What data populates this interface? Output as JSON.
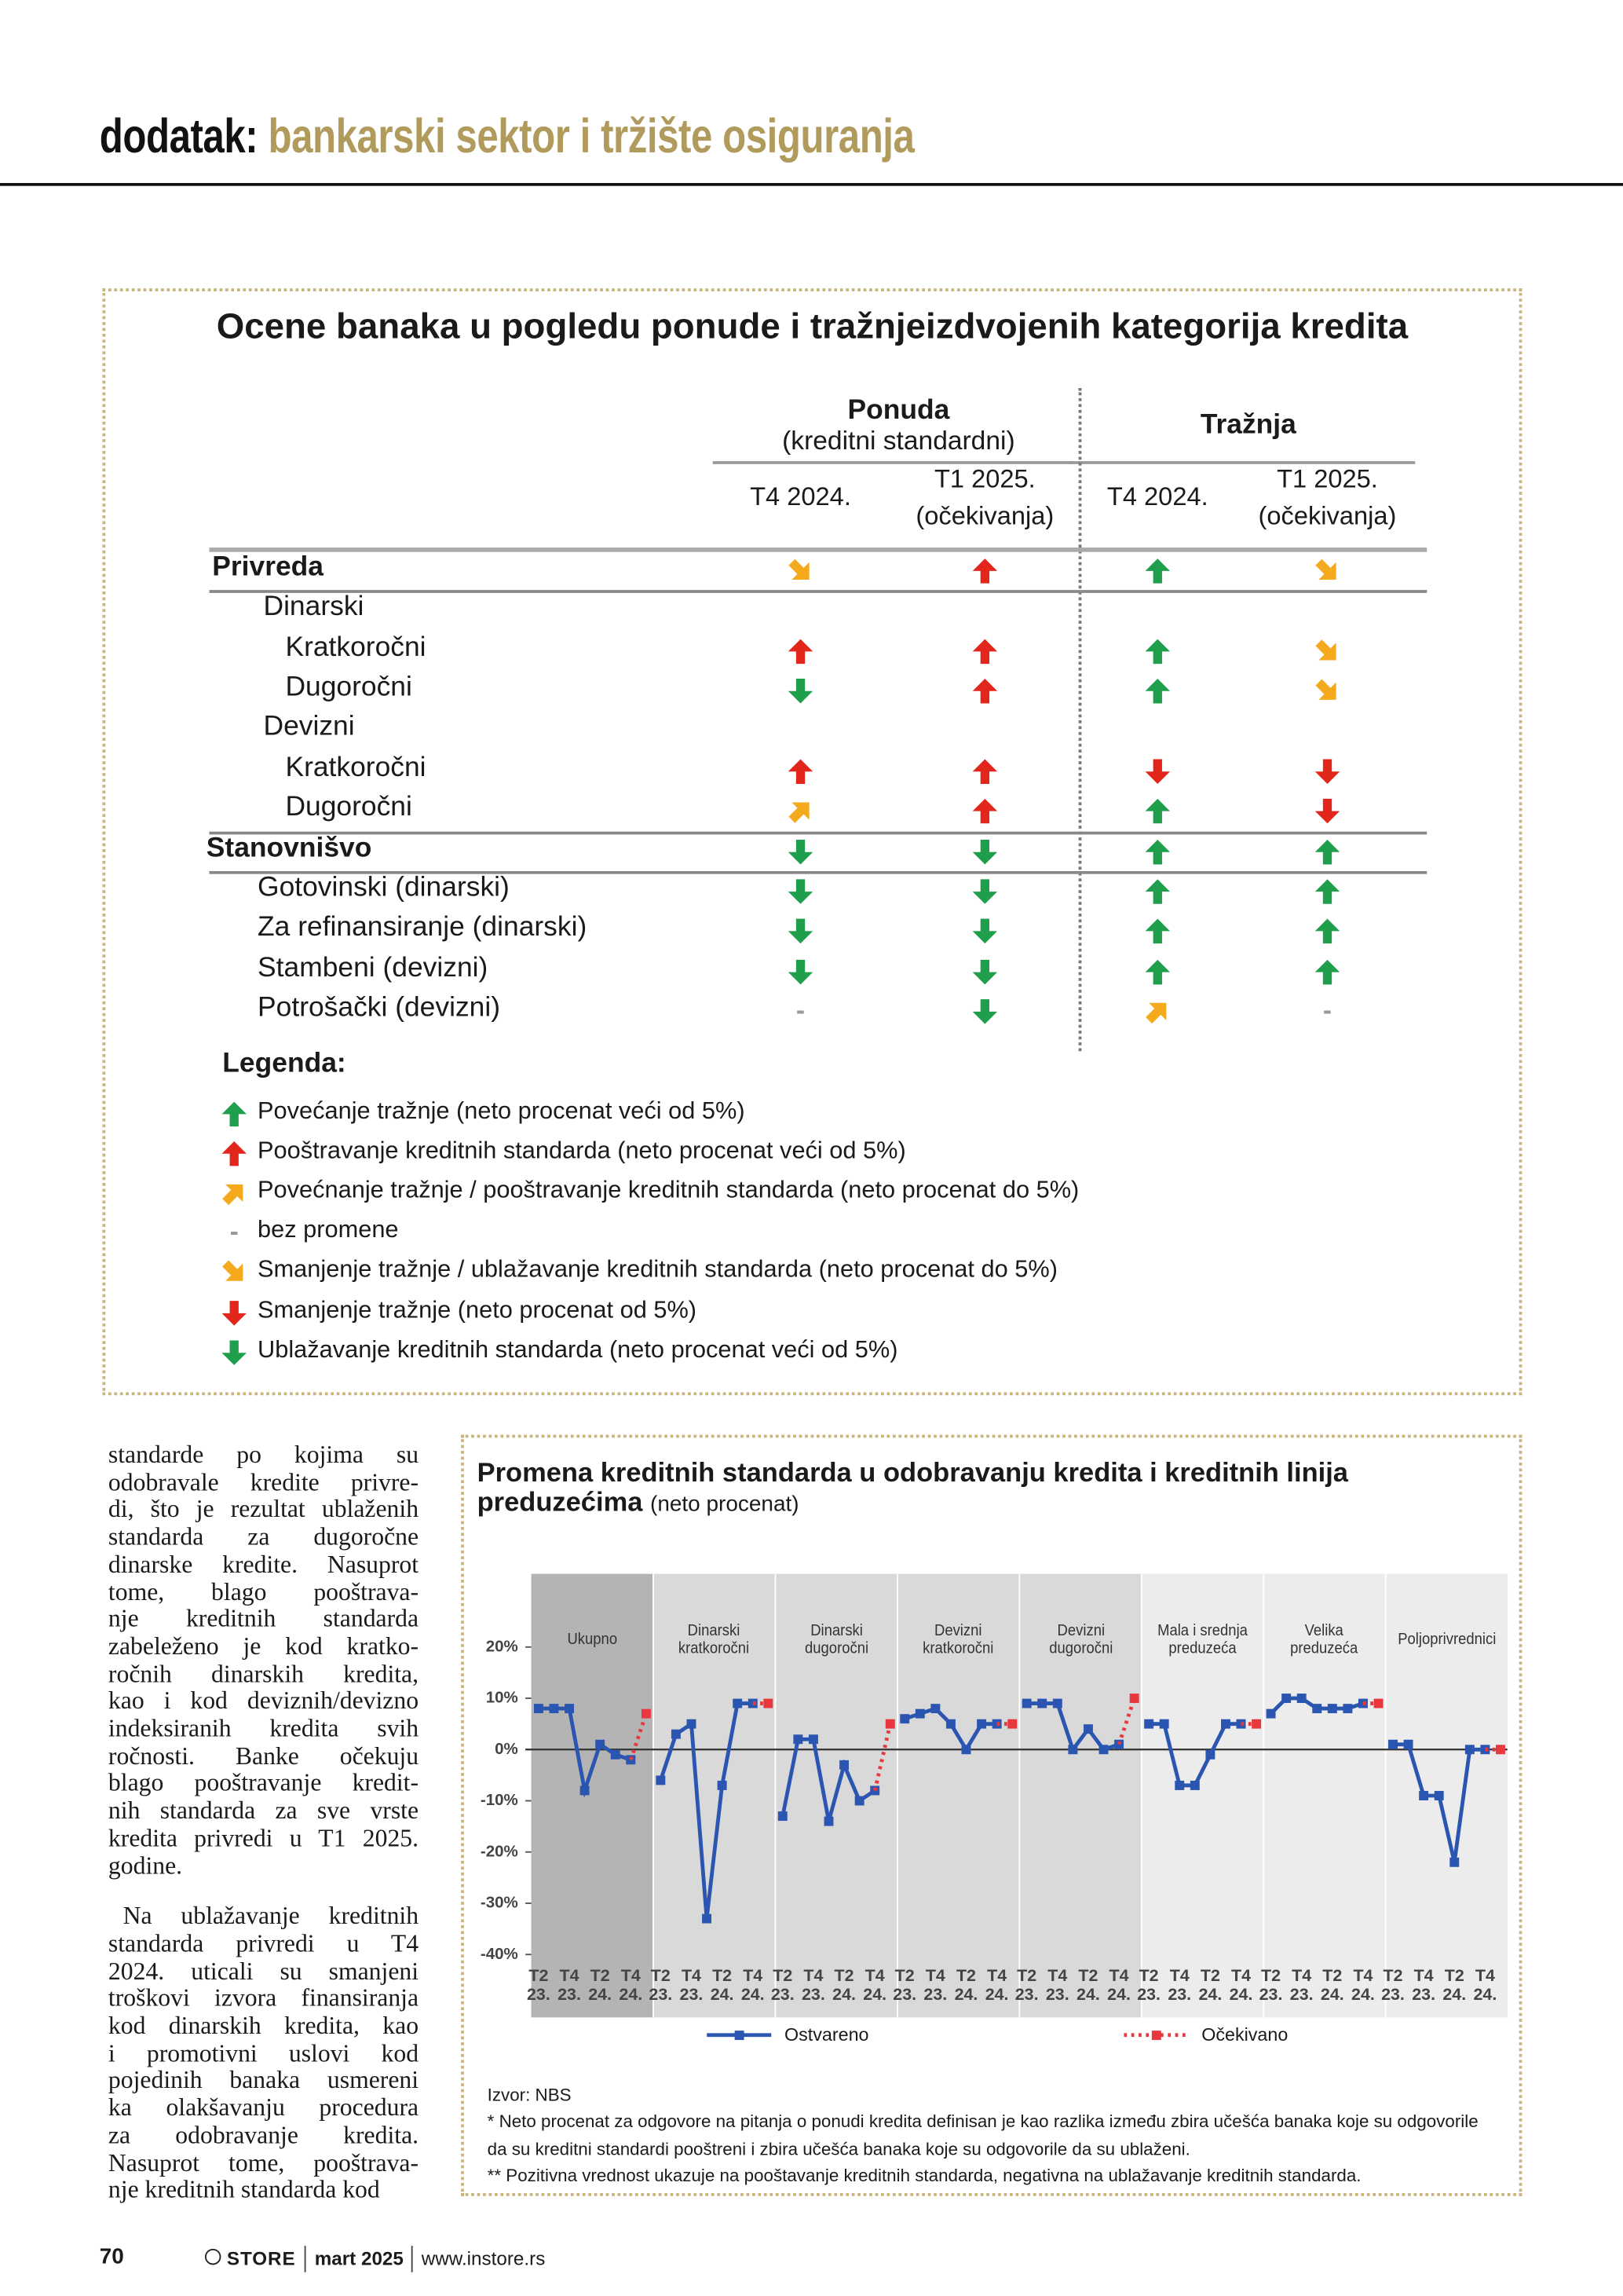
{
  "header": {
    "label": "dodatak:",
    "title": "bankarski sektor i tržište osiguranja"
  },
  "table": {
    "title": "Ocene banaka u pogledu ponude i tražnjeizdvojenih kategorija kredita",
    "groups": [
      {
        "name": "Ponuda",
        "subtitle": "(kreditni standardni)",
        "columns": [
          {
            "period": "T4 2024."
          },
          {
            "period": "T1 2025.",
            "note": "(očekivanja)"
          }
        ]
      },
      {
        "name": "Tražnja",
        "columns": [
          {
            "period": "T4 2024."
          },
          {
            "period": "T1 2025.",
            "note": "(očekivanja)"
          }
        ]
      }
    ],
    "rows": [
      {
        "label": "Privreda",
        "cells": [
          "orange-down-right",
          "red-up",
          "green-up",
          "orange-down-right"
        ]
      },
      {
        "label": "Dinarski",
        "cells": []
      },
      {
        "label": "Kratkoročni",
        "cells": [
          "red-up",
          "red-up",
          "green-up",
          "orange-down-right"
        ]
      },
      {
        "label": "Dugoročni",
        "cells": [
          "green-down",
          "red-up",
          "green-up",
          "orange-down-right"
        ]
      },
      {
        "label": "Devizni",
        "cells": []
      },
      {
        "label": "Kratkoročni",
        "cells": [
          "red-up",
          "red-up",
          "red-down",
          "red-down"
        ]
      },
      {
        "label": "Dugoročni",
        "cells": [
          "orange-up-right",
          "red-up",
          "green-up",
          "red-down"
        ]
      },
      {
        "label": "Stanovnišvo",
        "cells": [
          "green-down",
          "green-down",
          "green-up",
          "green-up"
        ]
      },
      {
        "label": "Gotovinski (dinarski)",
        "cells": [
          "green-down",
          "green-down",
          "green-up",
          "green-up"
        ]
      },
      {
        "label": "Za refinansiranje (dinarski)",
        "cells": [
          "green-down",
          "green-down",
          "green-up",
          "green-up"
        ]
      },
      {
        "label": "Stambeni (devizni)",
        "cells": [
          "green-down",
          "green-down",
          "green-up",
          "green-up"
        ]
      },
      {
        "label": "Potrošački (devizni)",
        "cells": [
          "-",
          "green-down",
          "orange-up-right",
          "-"
        ]
      }
    ]
  },
  "legend": {
    "title": "Legenda:",
    "items": [
      {
        "symbol": "green-up",
        "text": "Povećanje tražnje (neto procenat veći od 5%)"
      },
      {
        "symbol": "red-up",
        "text": "Pooštravanje kreditnih standarda (neto procenat veći od 5%)"
      },
      {
        "symbol": "orange-up-right",
        "text": "Povećnanje tražnje / pooštravanje kreditnih standarda (neto procenat do 5%)"
      },
      {
        "symbol": "-",
        "text": "bez promene"
      },
      {
        "symbol": "orange-down-right",
        "text": "Smanjenje tražnje / ublažavanje kreditnih standarda (neto procenat do 5%)"
      },
      {
        "symbol": "red-down",
        "text": "Smanjenje tražnje (neto procenat od 5%)"
      },
      {
        "symbol": "green-down",
        "text": "Ublažavanje kreditnih standarda (neto procenat veći od 5%)"
      }
    ]
  },
  "body_text": {
    "paragraphs": [
      [
        "standarde po kojima su",
        "odobravale kredite privre-",
        "di, što je rezultat ublaženih",
        "standarda za dugoročne",
        "dinarske kredite. Nasuprot",
        "tome, blago pooštrava-",
        "nje kreditnih standarda",
        "zabeleženo je kod kratko-",
        "ročnih dinarskih kredita,",
        "kao i kod deviznih/devizno",
        "indeksiranih kredita svih",
        "ročnosti. Banke očekuju",
        "blago pooštravanje kredit-",
        "nih standarda za sve vrste",
        "kredita privredi u T1 2025.",
        "godine."
      ],
      [
        "Na ublažavanje kreditnih",
        "standarda privredi u T4",
        "2024. uticali su smanjeni",
        "troškovi izvora finansiranja",
        "kod dinarskih kredita, kao",
        "i promotivni uslovi kod",
        "pojedinih banaka usmereni",
        "ka olakšavanju procedura",
        "za odobravanje kredita.",
        "Nasuprot tome, pooštrava-",
        "nje kreditnih standarda kod"
      ]
    ]
  },
  "chart_data": {
    "type": "line",
    "title": "Promena kreditnih standarda u odobravanju kredita i kreditnih linija preduzećima",
    "subtitle": "(neto procenat)",
    "groups": [
      {
        "name": "Ukupno",
        "color": "#b4b4b4"
      },
      {
        "name": "Dinarski kratkoročni",
        "color": "#d9d9d9"
      },
      {
        "name": "Dinarski dugoročni",
        "color": "#d9d9d9"
      },
      {
        "name": "Devizni kratkoročni",
        "color": "#d9d9d9"
      },
      {
        "name": "Devizni dugoročni",
        "color": "#d9d9d9"
      },
      {
        "name": "Mala i srednja preduzeća",
        "color": "#ececec"
      },
      {
        "name": "Velika preduzeća",
        "color": "#ececec"
      },
      {
        "name": "Poljoprivrednici",
        "color": "#ececec"
      }
    ],
    "categories": [
      "T2 23.",
      null,
      "T4 23.",
      null,
      "T2 24.",
      null,
      "T4 24.",
      null,
      "T2 23.",
      null,
      "T4 23.",
      null,
      "T2 24.",
      null,
      "T4 24.",
      null,
      "T2 23.",
      null,
      "T4 23.",
      null,
      "T2 24.",
      null,
      "T4 24.",
      null,
      "T2 23.",
      null,
      "T4 23.",
      null,
      "T2 24.",
      null,
      "T4 24.",
      null,
      "T2 23.",
      null,
      "T4 23.",
      null,
      "T2 24.",
      null,
      "T4 24.",
      null,
      "T2 23.",
      null,
      "T4 23.",
      null,
      "T2 24.",
      null,
      "T4 24.",
      null,
      "T2 23.",
      null,
      "T4 23.",
      null,
      "T2 24.",
      null,
      "T4 24.",
      null,
      "T2 23.",
      null,
      "T4 23.",
      null,
      "T2 24.",
      null,
      "T4 24.",
      null
    ],
    "series": [
      {
        "name": "Ostvareno",
        "color": "#2a55b0",
        "values": [
          8,
          8,
          8,
          -8,
          1,
          -1,
          -2,
          null,
          -6,
          3,
          5,
          -33,
          -7,
          9,
          9,
          null,
          -13,
          2,
          2,
          -14,
          -3,
          -10,
          -8,
          null,
          6,
          7,
          8,
          5,
          0,
          5,
          5,
          null,
          9,
          9,
          9,
          0,
          4,
          0,
          1,
          null,
          5,
          5,
          -7,
          -7,
          -1,
          5,
          5,
          null,
          7,
          10,
          10,
          8,
          8,
          8,
          9,
          null,
          1,
          1,
          -9,
          -9,
          -22,
          0,
          0,
          null
        ]
      },
      {
        "name": "Očekivano",
        "color": "#e8383d",
        "dashed": true,
        "values": [
          null,
          null,
          null,
          null,
          null,
          null,
          -2,
          7,
          null,
          null,
          null,
          null,
          null,
          null,
          9,
          9,
          null,
          null,
          null,
          null,
          null,
          null,
          -8,
          5,
          null,
          null,
          null,
          null,
          null,
          null,
          5,
          5,
          null,
          null,
          null,
          null,
          null,
          null,
          1,
          10,
          null,
          null,
          null,
          null,
          null,
          null,
          5,
          5,
          null,
          null,
          null,
          null,
          null,
          null,
          9,
          9,
          null,
          null,
          null,
          null,
          null,
          null,
          0,
          0
        ]
      }
    ],
    "ylim": [
      -40,
      20
    ],
    "yticks": [
      {
        "value": 20,
        "label": "20%"
      },
      {
        "value": 10,
        "label": "10%"
      },
      {
        "value": 0,
        "label": "0%"
      },
      {
        "value": -10,
        "label": "-10%"
      },
      {
        "value": -20,
        "label": "-20%"
      },
      {
        "value": -30,
        "label": "-30%"
      },
      {
        "value": -40,
        "label": "-40%"
      }
    ],
    "grid": false,
    "source": "Izvor: NBS",
    "notes": [
      "*  Neto procenat za odgovore na pitanja o ponudi kredita definisan je kao razlika između zbira učešća banaka koje su odgovorile da su kreditni standardi pooštreni i zbira učešća banaka koje su odgovorile da su ublaženi.",
      "** Pozitivna vrednost ukazuje na pooštavanje kreditnih standarda, negativna na ublažavanje kreditnih standarda."
    ]
  },
  "footer": {
    "page": "70",
    "brand": "STORE",
    "issue": "mart 2025",
    "url": "www.instore.rs"
  }
}
